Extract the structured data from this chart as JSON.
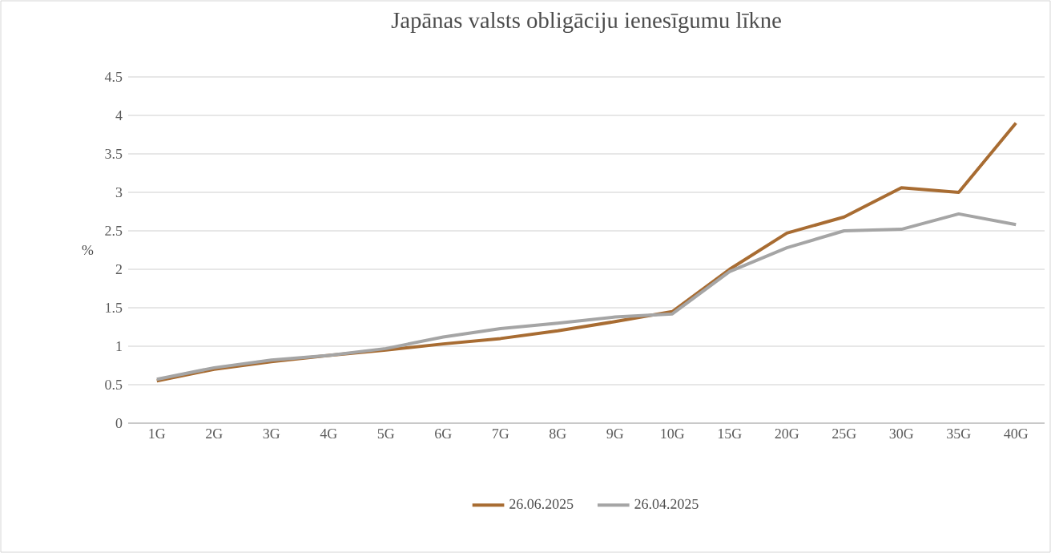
{
  "chart_data": {
    "type": "line",
    "title": "Japānas valsts obligāciju ienesīgumu līkne",
    "ylabel": "%",
    "categories": [
      "1G",
      "2G",
      "3G",
      "4G",
      "5G",
      "6G",
      "7G",
      "8G",
      "9G",
      "10G",
      "15G",
      "20G",
      "25G",
      "30G",
      "35G",
      "40G"
    ],
    "series": [
      {
        "name": "26.06.2025",
        "color": "#a86c32",
        "values": [
          0.55,
          0.7,
          0.8,
          0.88,
          0.95,
          1.03,
          1.1,
          1.2,
          1.32,
          1.45,
          2.0,
          2.47,
          2.68,
          3.06,
          3.0,
          3.9
        ]
      },
      {
        "name": "26.04.2025",
        "color": "#a5a5a5",
        "values": [
          0.57,
          0.72,
          0.82,
          0.88,
          0.97,
          1.12,
          1.23,
          1.3,
          1.38,
          1.42,
          1.97,
          2.28,
          2.5,
          2.52,
          2.72,
          2.58
        ]
      }
    ],
    "ylim": [
      0,
      4.5
    ],
    "yticks": [
      0,
      0.5,
      1,
      1.5,
      2,
      2.5,
      3,
      3.5,
      4,
      4.5
    ],
    "grid": "y",
    "legend": "bottom",
    "marker": "none",
    "line_style": "solid"
  }
}
